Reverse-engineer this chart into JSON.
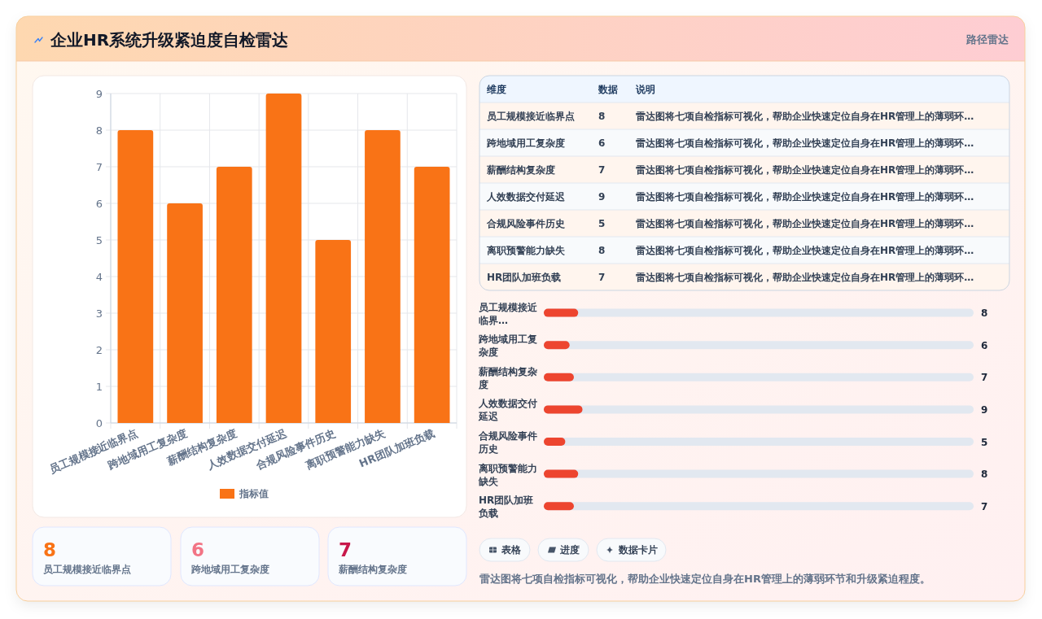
{
  "chart_data": [
    {
      "type": "other",
      "title": "企业HR系统升级紧迫度自检雷达",
      "annotations": [
        "路径雷达"
      ]
    },
    {
      "type": "bar",
      "categories": [
        "员工规模接近临界点",
        "跨地域用工复杂度",
        "薪酬结构复杂度",
        "人效数据交付延迟",
        "合规风险事件历史",
        "离职预警能力缺失",
        "HR团队加班负载"
      ],
      "series": [
        {
          "name": "指标值",
          "color": "#f97316",
          "values": [
            8,
            6,
            7,
            9,
            5,
            8,
            7
          ]
        }
      ],
      "ylim": [
        0,
        9
      ],
      "yticks": [
        0,
        1,
        2,
        3,
        4,
        5,
        6,
        7,
        8,
        9
      ],
      "grid": true,
      "legend": "bottom"
    },
    {
      "type": "other",
      "categories": [
        "员工规模接近临界点",
        "跨地域用工复杂度",
        "薪酬结构复杂度",
        "人效数据交付延迟",
        "合规风险事件历史",
        "离职预警能力缺失",
        "HR团队加班负载"
      ],
      "values": [
        8,
        6,
        7,
        9,
        5,
        8,
        7
      ],
      "data_labels": true,
      "annotations": [
        "维度",
        "数据",
        "说明",
        "雷达图将七项自检指标可视化，帮助企业快速定位自身在HR管理上的薄弱环…",
        "雷达图将七项自检指标可视化，帮助企业快速定位自身在HR管理上的薄弱环…",
        "雷达图将七项自检指标可视化，帮助企业快速定位自身在HR管理上的薄弱环…",
        "雷达图将七项自检指标可视化，帮助企业快速定位自身在HR管理上的薄弱环…",
        "雷达图将七项自检指标可视化，帮助企业快速定位自身在HR管理上的薄弱环…",
        "雷达图将七项自检指标可视化，帮助企业快速定位自身在HR管理上的薄弱环…",
        "雷达图将七项自检指标可视化，帮助企业快速定位自身在HR管理上的薄弱环…"
      ]
    },
    {
      "type": "bar",
      "orientation": "horizontal",
      "categories": [
        "员工规模接近临界…",
        "跨地域用工复杂度",
        "薪酬结构复杂度",
        "人效数据交付延迟",
        "合规风险事件历史",
        "离职预警能力缺失",
        "HR团队加班负载"
      ],
      "values": [
        8,
        6,
        7,
        9,
        5,
        8,
        7
      ],
      "color": "#ed452f",
      "xlim": [
        0,
        100
      ],
      "data_labels": true,
      "tick_labels": "y"
    },
    {
      "type": "other",
      "categories": [
        "员工规模接近临界点",
        "跨地域用工复杂度",
        "薪酬结构复杂度"
      ],
      "values": [
        8,
        6,
        7
      ],
      "data_labels": true
    },
    {
      "type": "other",
      "annotations": [
        "表格",
        "进度",
        "数据卡片",
        "雷达图将七项自检指标可视化，帮助企业快速定位自身在HR管理上的薄弱环节和升级紧迫程度。"
      ]
    }
  ]
}
